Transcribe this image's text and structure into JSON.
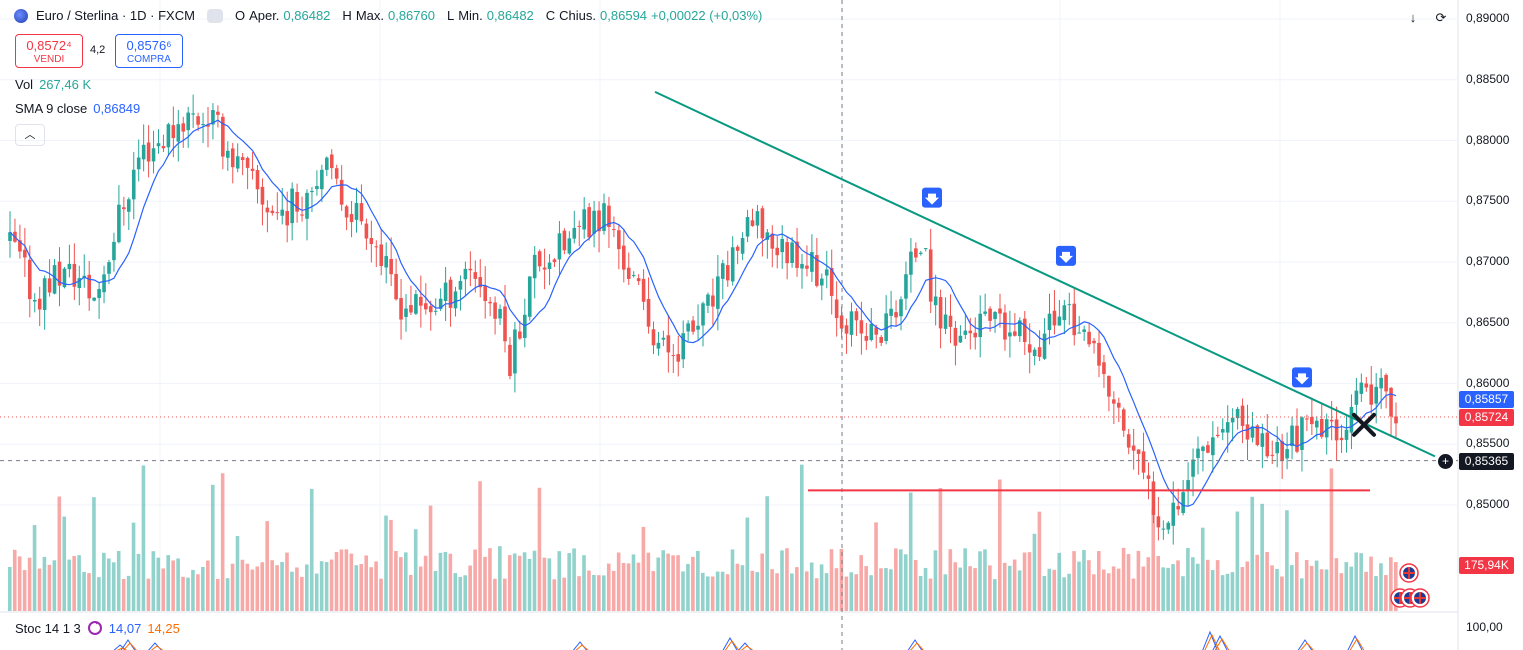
{
  "header": {
    "symbol": "Euro / Sterlina · 1D · FXCM",
    "ohlc": [
      {
        "k": "O",
        "label": "Aper.",
        "v": "0,86482"
      },
      {
        "k": "H",
        "label": "Max.",
        "v": "0,86760"
      },
      {
        "k": "L",
        "label": "Min.",
        "v": "0,86482"
      },
      {
        "k": "C",
        "label": "Chius.",
        "v": "0,86594"
      }
    ],
    "change": "+0,00022 (+0,03%)"
  },
  "trade": {
    "sell_price": "0,8572⁴",
    "sell_label": "VENDI",
    "spread": "4,2",
    "buy_price": "0,8576⁶",
    "buy_label": "COMPRA"
  },
  "indicators": {
    "vol_label": "Vol",
    "vol_value": "267,46 K",
    "sma_label": "SMA 9 close",
    "sma_value": "0,86849",
    "collapse_icon": "chevron-up-icon"
  },
  "stoc": {
    "label": "Stoc 14 1 3",
    "k_value": "14,07",
    "d_value": "14,25",
    "icon": "sync-icon"
  },
  "toolbar": {
    "download_icon": "arrow-down-icon",
    "fullscreen_icon": "fullscreen-icon"
  },
  "price_axis": {
    "labels": [
      "0,89000",
      "0,88500",
      "0,88000",
      "0,87500",
      "0,87000",
      "0,86500",
      "0,86000",
      "0,85500",
      "0,85000"
    ],
    "stoc_label": "100,00",
    "blue_badge": "0,85857",
    "red_badge": "0,85724",
    "cross_badge": "0,85365",
    "volume_badge": "175,94K"
  },
  "colors": {
    "up": "#26a69a",
    "down": "#ef5350",
    "sma": "#2962ff",
    "trendline": "#089981",
    "support": "#f23645"
  },
  "chart_data": {
    "type": "candlestick",
    "ylim": [
      0.8465,
      0.8905
    ],
    "yticks": [
      0.89,
      0.885,
      0.88,
      0.875,
      0.87,
      0.865,
      0.86,
      0.855,
      0.85
    ],
    "anchors": [
      [
        0,
        0.8725
      ],
      [
        15,
        0.871
      ],
      [
        35,
        0.867
      ],
      [
        55,
        0.869
      ],
      [
        75,
        0.869
      ],
      [
        95,
        0.867
      ],
      [
        120,
        0.874
      ],
      [
        140,
        0.879
      ],
      [
        160,
        0.88
      ],
      [
        185,
        0.882
      ],
      [
        210,
        0.882
      ],
      [
        230,
        0.879
      ],
      [
        255,
        0.876
      ],
      [
        275,
        0.874
      ],
      [
        300,
        0.875
      ],
      [
        320,
        0.878
      ],
      [
        345,
        0.875
      ],
      [
        370,
        0.873
      ],
      [
        395,
        0.867
      ],
      [
        420,
        0.866
      ],
      [
        445,
        0.867
      ],
      [
        470,
        0.87
      ],
      [
        500,
        0.865
      ],
      [
        510,
        0.862
      ],
      [
        535,
        0.87
      ],
      [
        560,
        0.871
      ],
      [
        585,
        0.873
      ],
      [
        605,
        0.874
      ],
      [
        625,
        0.87
      ],
      [
        650,
        0.865
      ],
      [
        665,
        0.8625
      ],
      [
        690,
        0.864
      ],
      [
        715,
        0.867
      ],
      [
        740,
        0.872
      ],
      [
        760,
        0.873
      ],
      [
        780,
        0.871
      ],
      [
        800,
        0.871
      ],
      [
        820,
        0.869
      ],
      [
        840,
        0.866
      ],
      [
        860,
        0.864
      ],
      [
        880,
        0.864
      ],
      [
        900,
        0.867
      ],
      [
        920,
        0.872
      ],
      [
        935,
        0.866
      ],
      [
        960,
        0.864
      ],
      [
        985,
        0.865
      ],
      [
        1010,
        0.864
      ],
      [
        1040,
        0.8635
      ],
      [
        1065,
        0.867
      ],
      [
        1080,
        0.864
      ],
      [
        1100,
        0.861
      ],
      [
        1120,
        0.857
      ],
      [
        1140,
        0.853
      ],
      [
        1160,
        0.849
      ],
      [
        1180,
        0.851
      ],
      [
        1200,
        0.855
      ],
      [
        1225,
        0.857
      ],
      [
        1250,
        0.856
      ],
      [
        1275,
        0.8545
      ],
      [
        1300,
        0.856
      ],
      [
        1325,
        0.856
      ],
      [
        1345,
        0.857
      ],
      [
        1365,
        0.859
      ],
      [
        1385,
        0.859
      ],
      [
        1400,
        0.8575
      ]
    ],
    "candle_x_start": 10,
    "candle_x_end": 1400,
    "candle_spacing": 4.95,
    "sma_period": 9,
    "trendline": {
      "from": [
        655,
        0.884
      ],
      "to": [
        1435,
        0.854
      ]
    },
    "support_line": {
      "from": [
        808,
        0.8512
      ],
      "to": [
        1370,
        0.8512
      ]
    },
    "current_price_line": 0.85724,
    "crosshair": {
      "x": 842,
      "y_price": 0.85365
    },
    "signal_arrows": [
      [
        932,
        0.8753
      ],
      [
        1066,
        0.8705
      ],
      [
        1302,
        0.8605
      ]
    ],
    "cross_marker": [
      1364,
      0.8566
    ],
    "volume_max": 190,
    "stoc_label": "100,00"
  }
}
